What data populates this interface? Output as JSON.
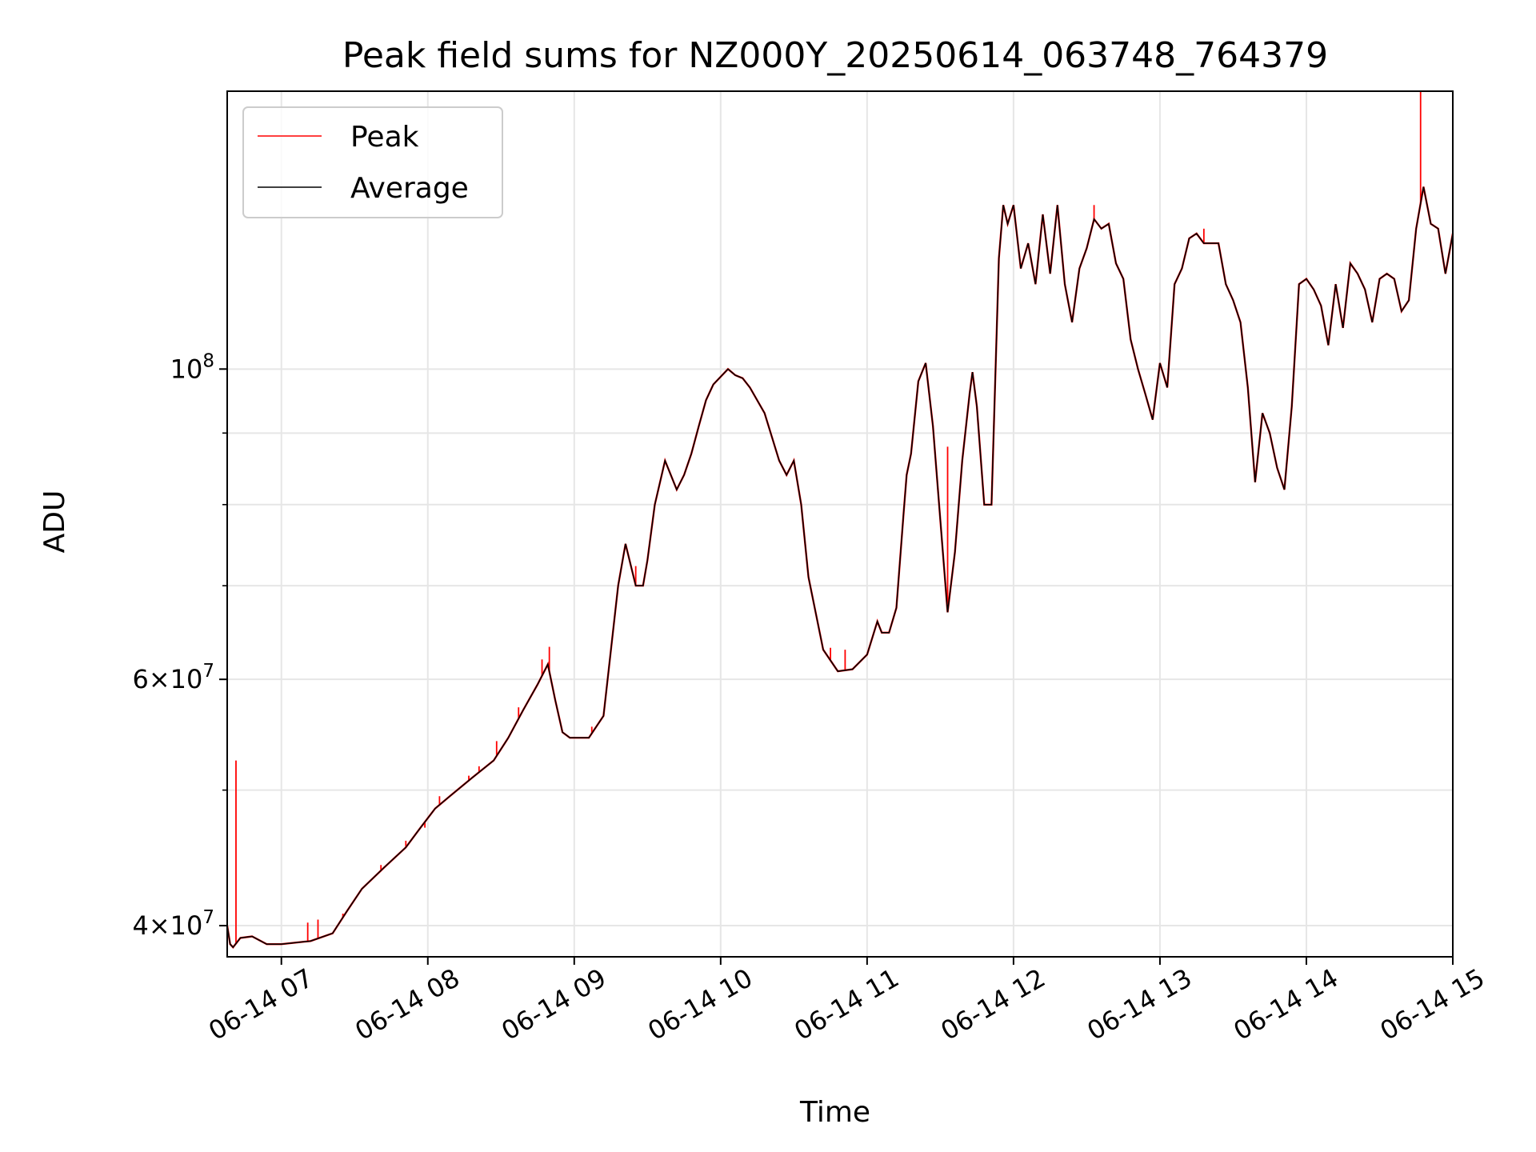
{
  "chart_data": {
    "type": "line",
    "title": "Peak field sums for NZ000Y_20250614_063748_764379",
    "xlabel": "Time",
    "ylabel": "ADU",
    "y_scale": "log",
    "xlim": [
      "06-14 06:37",
      "06-14 15:00"
    ],
    "ylim": [
      38000000,
      158000000
    ],
    "x_tick_labels": [
      "06-14 07",
      "06-14 08",
      "06-14 09",
      "06-14 10",
      "06-14 11",
      "06-14 12",
      "06-14 13",
      "06-14 14",
      "06-14 15"
    ],
    "x_tick_hours": [
      7,
      8,
      9,
      10,
      11,
      12,
      13,
      14,
      15
    ],
    "y_major_ticks": [
      {
        "value": 40000000,
        "mantissa": "4",
        "exponent": "7"
      },
      {
        "value": 60000000,
        "mantissa": "6",
        "exponent": "7"
      },
      {
        "value": 100000000,
        "mantissa": "",
        "exponent": "8"
      }
    ],
    "y_minor_ticks": [
      50000000,
      70000000,
      80000000,
      90000000
    ],
    "grid": true,
    "legend": {
      "position": "top-left",
      "entries": [
        "Peak",
        "Average"
      ]
    },
    "series": [
      {
        "name": "Average",
        "color": "#000000",
        "x_hours": [
          6.63,
          6.65,
          6.67,
          6.72,
          6.8,
          6.9,
          7.0,
          7.2,
          7.35,
          7.45,
          7.55,
          7.7,
          7.85,
          7.95,
          8.05,
          8.15,
          8.3,
          8.45,
          8.55,
          8.65,
          8.75,
          8.82,
          8.87,
          8.92,
          8.97,
          9.0,
          9.1,
          9.2,
          9.3,
          9.35,
          9.42,
          9.47,
          9.5,
          9.55,
          9.62,
          9.7,
          9.75,
          9.8,
          9.85,
          9.9,
          9.95,
          10.05,
          10.1,
          10.15,
          10.2,
          10.3,
          10.4,
          10.45,
          10.5,
          10.55,
          10.6,
          10.7,
          10.8,
          10.9,
          11.0,
          11.07,
          11.1,
          11.15,
          11.2,
          11.25,
          11.27,
          11.3,
          11.35,
          11.4,
          11.45,
          11.5,
          11.55,
          11.6,
          11.65,
          11.7,
          11.72,
          11.75,
          11.8,
          11.85,
          11.9,
          11.93,
          11.96,
          12.0,
          12.05,
          12.1,
          12.15,
          12.2,
          12.25,
          12.3,
          12.35,
          12.4,
          12.45,
          12.5,
          12.55,
          12.6,
          12.65,
          12.7,
          12.75,
          12.8,
          12.85,
          12.9,
          12.95,
          13.0,
          13.05,
          13.1,
          13.15,
          13.2,
          13.25,
          13.3,
          13.35,
          13.4,
          13.45,
          13.5,
          13.55,
          13.6,
          13.65,
          13.7,
          13.75,
          13.8,
          13.85,
          13.9,
          13.95,
          14.0,
          14.05,
          14.1,
          14.15,
          14.2,
          14.25,
          14.3,
          14.35,
          14.4,
          14.45,
          14.5,
          14.55,
          14.6,
          14.65,
          14.7,
          14.75,
          14.8,
          14.85,
          14.9,
          14.95,
          15.0
        ],
        "values": [
          40000000,
          38800000,
          38600000,
          39200000,
          39300000,
          38800000,
          38800000,
          39000000,
          39500000,
          41000000,
          42500000,
          44000000,
          45500000,
          47000000,
          48500000,
          49500000,
          51000000,
          52500000,
          54500000,
          57000000,
          59500000,
          61500000,
          58000000,
          55000000,
          54500000,
          54500000,
          54500000,
          56500000,
          70000000,
          75000000,
          70000000,
          70000000,
          73000000,
          80000000,
          86000000,
          82000000,
          84000000,
          87000000,
          91000000,
          95000000,
          97500000,
          100000000,
          99000000,
          98500000,
          97000000,
          93000000,
          86000000,
          84000000,
          86000000,
          80000000,
          71000000,
          63000000,
          60800000,
          61000000,
          62500000,
          66000000,
          64800000,
          64800000,
          67500000,
          79000000,
          84000000,
          87000000,
          98000000,
          101000000,
          91000000,
          78000000,
          67000000,
          74000000,
          86000000,
          96000000,
          99500000,
          94000000,
          80000000,
          80000000,
          120000000,
          131000000,
          127000000,
          131000000,
          118000000,
          123000000,
          115000000,
          129000000,
          117000000,
          131000000,
          115000000,
          108000000,
          118000000,
          122000000,
          128000000,
          126000000,
          127000000,
          119000000,
          116000000,
          105000000,
          100000000,
          96000000,
          92000000,
          101000000,
          97000000,
          115000000,
          118000000,
          124000000,
          125000000,
          123000000,
          123000000,
          123000000,
          115000000,
          112000000,
          108000000,
          97000000,
          83000000,
          93000000,
          90000000,
          85000000,
          82000000,
          94000000,
          115000000,
          116000000,
          114000000,
          111000000,
          104000000,
          115000000,
          107000000,
          119000000,
          117000000,
          114000000,
          108000000,
          116000000,
          117000000,
          116000000,
          110000000,
          112000000,
          126000000,
          135000000,
          127000000,
          126000000,
          117000000,
          125000000
        ]
      },
      {
        "name": "Peak",
        "color": "#ff0000",
        "spikes": [
          {
            "x_hour": 6.69,
            "value": 52500000
          },
          {
            "x_hour": 7.18,
            "value": 40200000
          },
          {
            "x_hour": 7.25,
            "value": 40400000
          },
          {
            "x_hour": 7.42,
            "value": 40800000
          },
          {
            "x_hour": 7.52,
            "value": 42000000
          },
          {
            "x_hour": 7.68,
            "value": 44200000
          },
          {
            "x_hour": 7.85,
            "value": 46000000
          },
          {
            "x_hour": 7.98,
            "value": 47000000
          },
          {
            "x_hour": 8.08,
            "value": 49500000
          },
          {
            "x_hour": 8.28,
            "value": 51200000
          },
          {
            "x_hour": 8.35,
            "value": 52000000
          },
          {
            "x_hour": 8.47,
            "value": 54200000
          },
          {
            "x_hour": 8.62,
            "value": 57300000
          },
          {
            "x_hour": 8.78,
            "value": 62000000
          },
          {
            "x_hour": 8.83,
            "value": 63300000
          },
          {
            "x_hour": 9.12,
            "value": 55500000
          },
          {
            "x_hour": 9.42,
            "value": 72300000
          },
          {
            "x_hour": 10.75,
            "value": 63200000
          },
          {
            "x_hour": 10.85,
            "value": 63000000
          },
          {
            "x_hour": 11.55,
            "value": 88000000
          },
          {
            "x_hour": 12.55,
            "value": 131000000
          },
          {
            "x_hour": 13.3,
            "value": 126000000
          },
          {
            "x_hour": 14.78,
            "value": 158000000
          }
        ]
      }
    ]
  }
}
